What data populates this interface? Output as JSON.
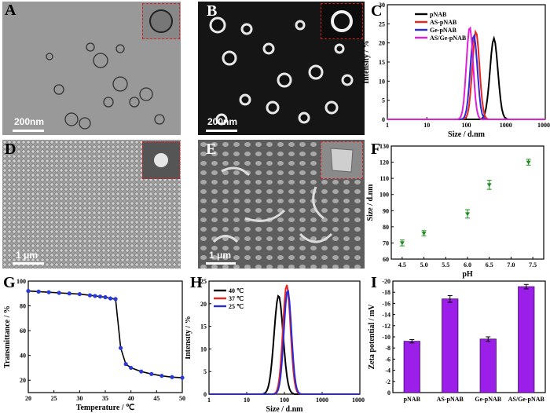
{
  "figure": {
    "panels": {
      "A": {
        "label": "A",
        "scale_bar": "200nm"
      },
      "B": {
        "label": "B",
        "scale_bar": "200nm"
      },
      "C": {
        "label": "C"
      },
      "D": {
        "label": "D",
        "scale_bar": "1 μm"
      },
      "E": {
        "label": "E",
        "scale_bar": "1 μm"
      },
      "F": {
        "label": "F"
      },
      "G": {
        "label": "G"
      },
      "H": {
        "label": "H"
      },
      "I": {
        "label": "I"
      }
    }
  },
  "chart_data": [
    {
      "id": "C",
      "type": "line",
      "xlabel": "Size / d.nm",
      "ylabel": "Intensity / %",
      "x_scale": "log",
      "xlim": [
        1,
        10000
      ],
      "ylim": [
        0,
        30
      ],
      "x_ticks": [
        "1",
        "10",
        "100",
        "1000",
        "10000"
      ],
      "y_ticks": [
        "0",
        "5",
        "10",
        "15",
        "20",
        "25",
        "30"
      ],
      "legend_position": "top-right",
      "series": [
        {
          "name": "pNAB",
          "color": "#000000",
          "peak": 500,
          "height": 21.2,
          "sigma": 0.1
        },
        {
          "name": "AS-pNAB",
          "color": "#e8251f",
          "peak": 175,
          "height": 23.0,
          "sigma": 0.09
        },
        {
          "name": "Ge-pNAB",
          "color": "#2a2ad8",
          "peak": 155,
          "height": 22.0,
          "sigma": 0.09
        },
        {
          "name": "AS/Ge-pNAB",
          "color": "#e01fd8",
          "peak": 122,
          "height": 24.2,
          "sigma": 0.085
        }
      ]
    },
    {
      "id": "F",
      "type": "scatter",
      "xlabel": "pH",
      "ylabel": "Size / d.nm",
      "xlim": [
        4.25,
        7.75
      ],
      "ylim": [
        60,
        130
      ],
      "x_ticks": [
        "4.5",
        "5.0",
        "5.5",
        "6.0",
        "6.5",
        "7.0",
        "7.5"
      ],
      "y_ticks": [
        "60",
        "70",
        "80",
        "90",
        "100",
        "110",
        "120",
        "130"
      ],
      "color": "#1f8c1f",
      "x": [
        4.5,
        5.0,
        6.0,
        6.5,
        7.4
      ],
      "y": [
        70,
        76,
        88,
        106,
        120
      ],
      "error": [
        1.8,
        1.6,
        2.6,
        2.8,
        1.8
      ]
    },
    {
      "id": "G",
      "type": "line",
      "xlabel": "Temperature / ℃",
      "ylabel": "Transmittance / %",
      "xlim": [
        20,
        50
      ],
      "ylim": [
        10,
        100
      ],
      "x_ticks": [
        "20",
        "25",
        "30",
        "35",
        "40",
        "45",
        "50"
      ],
      "y_ticks": [
        "20",
        "40",
        "60",
        "80",
        "100"
      ],
      "color": "#000000",
      "marker_color": "#2a3ad8",
      "x": [
        20,
        22,
        24,
        26,
        28,
        30,
        32,
        33,
        34,
        35,
        36,
        37,
        38,
        39,
        40,
        42,
        44,
        46,
        48,
        50
      ],
      "y": [
        92,
        91.5,
        91,
        90.5,
        90,
        89.5,
        88.5,
        88,
        87.5,
        87,
        86,
        85.5,
        46,
        33,
        30,
        27,
        25,
        23.5,
        22.5,
        22
      ]
    },
    {
      "id": "H",
      "type": "line",
      "xlabel": "Size / d.nm",
      "ylabel": "Intensity / %",
      "x_scale": "log",
      "xlim": [
        1,
        10000
      ],
      "ylim": [
        0,
        25
      ],
      "x_ticks": [
        "1",
        "10",
        "100",
        "1000",
        "10000"
      ],
      "y_ticks": [
        "0",
        "5",
        "10",
        "15",
        "20",
        "25"
      ],
      "legend_position": "top-left",
      "series": [
        {
          "name": "40 ℃",
          "color": "#000000",
          "peak": 70,
          "height": 21.8,
          "sigma": 0.12
        },
        {
          "name": "37 ℃",
          "color": "#e8251f",
          "peak": 115,
          "height": 24.2,
          "sigma": 0.1
        },
        {
          "name": "25 ℃",
          "color": "#2a2ad8",
          "peak": 122,
          "height": 23.0,
          "sigma": 0.1
        }
      ]
    },
    {
      "id": "I",
      "type": "bar",
      "ylabel": "Zeta potential / mV",
      "categories": [
        "pNAB",
        "AS-pNAB",
        "Ge-pNAB",
        "AS/Ge-pNAB"
      ],
      "values": [
        -9.2,
        -16.8,
        -9.6,
        -19.0
      ],
      "error": [
        0.3,
        0.6,
        0.4,
        0.4
      ],
      "ylim": [
        0,
        -20
      ],
      "y_ticks": [
        "0",
        "-2",
        "-4",
        "-6",
        "-8",
        "-10",
        "-12",
        "-14",
        "-16",
        "-18",
        "-20"
      ],
      "color": "#9b1fe8"
    }
  ]
}
